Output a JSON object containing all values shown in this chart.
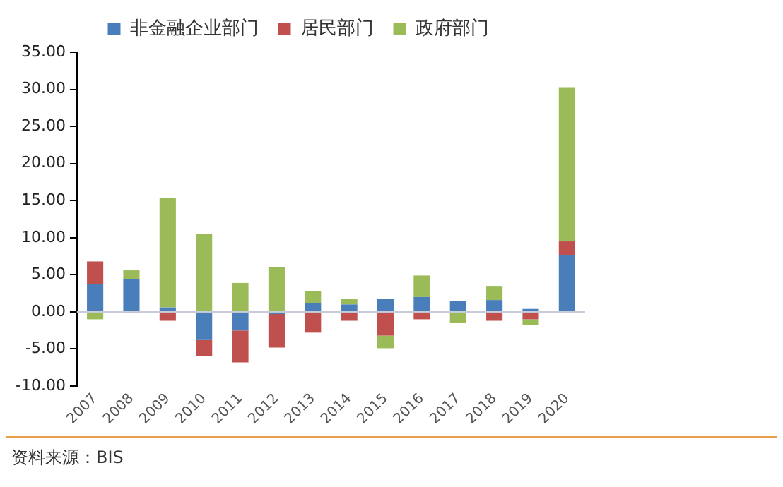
{
  "chart_data": {
    "type": "bar",
    "stacked": true,
    "categories": [
      "2007",
      "2008",
      "2009",
      "2010",
      "2011",
      "2012",
      "2013",
      "2014",
      "2015",
      "2016",
      "2017",
      "2018",
      "2019",
      "2020"
    ],
    "series": [
      {
        "name": "非金融企业部门",
        "color": "#4a7ebb",
        "values": [
          3.8,
          4.4,
          0.6,
          -3.8,
          -2.5,
          -0.3,
          1.2,
          1.0,
          1.8,
          2.0,
          1.5,
          1.6,
          0.4,
          7.7
        ]
      },
      {
        "name": "居民部门",
        "color": "#c0504d",
        "values": [
          3.0,
          -0.2,
          -1.2,
          -2.2,
          -4.3,
          -4.5,
          -2.8,
          -1.2,
          -3.2,
          -1.0,
          0,
          -1.2,
          -1.0,
          1.8
        ]
      },
      {
        "name": "政府部门",
        "color": "#9bbb59",
        "values": [
          -1.0,
          1.2,
          14.7,
          10.5,
          3.9,
          6.0,
          1.6,
          0.8,
          -1.7,
          2.9,
          -1.5,
          1.9,
          -0.8,
          20.8
        ]
      }
    ],
    "ylim": [
      -10,
      35
    ],
    "yticks": [
      {
        "value": -10,
        "label": "-10.00"
      },
      {
        "value": -5,
        "label": "-5.00"
      },
      {
        "value": 0,
        "label": "0.00"
      },
      {
        "value": 5,
        "label": "5.00"
      },
      {
        "value": 10,
        "label": "10.00"
      },
      {
        "value": 15,
        "label": "15.00"
      },
      {
        "value": 20,
        "label": "20.00"
      },
      {
        "value": 25,
        "label": "25.00"
      },
      {
        "value": 30,
        "label": "30.00"
      },
      {
        "value": 35,
        "label": "35.00"
      }
    ],
    "grid": false,
    "legend": "top",
    "ref_lines": [
      {
        "axis": "y",
        "value": 0,
        "color": "#c8ccd8"
      }
    ],
    "annotations": [
      "资料来源：BIS"
    ]
  }
}
